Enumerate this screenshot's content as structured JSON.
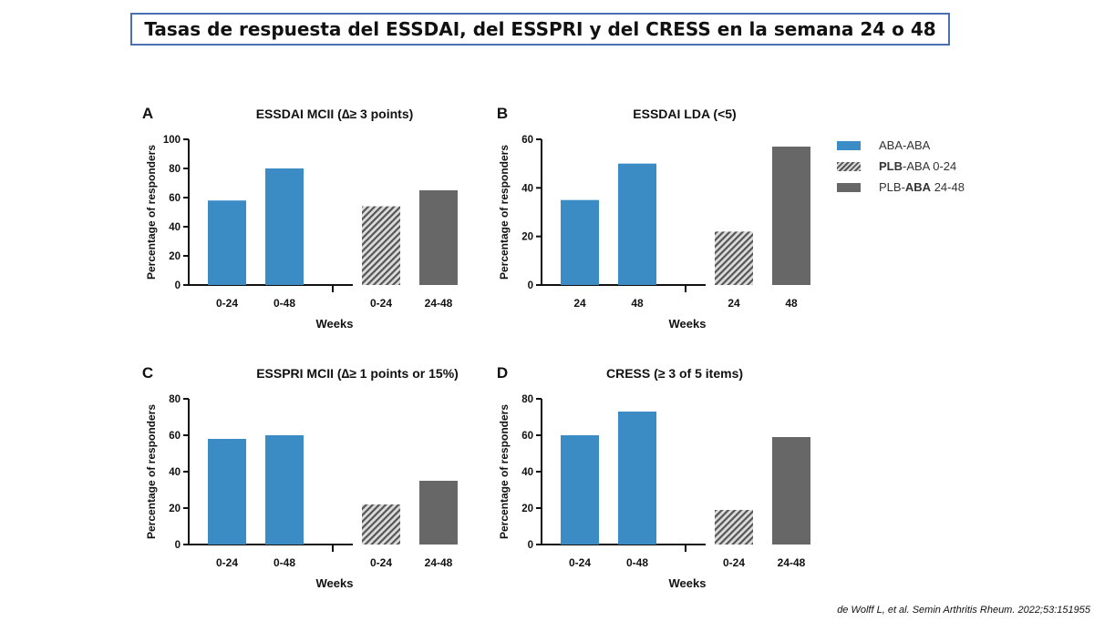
{
  "page_title": "Tasas de respuesta del ESSDAI, del ESSPRI y del CRESS en la semana 24 o 48",
  "citation": "de Wolff L, et al. Semin Arthritis Rheum. 2022;53:151955",
  "colors": {
    "aba_aba": "#3b8bc4",
    "plb_aba_24_48": "#676767",
    "hatch_dark": "#555555",
    "hatch_light": "#d8d8d8"
  },
  "legend": [
    {
      "bold": "",
      "text": "ABA-ABA",
      "style": "blue"
    },
    {
      "bold": "PLB",
      "text": "-ABA 0-24",
      "style": "hatch"
    },
    {
      "pre": "PLB-",
      "bold": "ABA",
      "text": " 24-48",
      "style": "gray"
    }
  ],
  "chart_data": [
    {
      "panel": "A",
      "type": "bar",
      "title": "ESSDAI MCII (∆≥ 3 points)",
      "xlabel": "Weeks",
      "ylabel": "Percentage of responders",
      "ylim": [
        0,
        100
      ],
      "yticks": [
        0,
        20,
        40,
        60,
        80,
        100
      ],
      "categories": [
        "0-24",
        "0-48",
        "0-24",
        "24-48"
      ],
      "values": [
        58,
        80,
        54,
        65
      ],
      "styles": [
        "blue",
        "blue",
        "hatch",
        "gray"
      ]
    },
    {
      "panel": "B",
      "type": "bar",
      "title": "ESSDAI LDA (<5)",
      "xlabel": "Weeks",
      "ylabel": "Percentage of responders",
      "ylim": [
        0,
        60
      ],
      "yticks": [
        0,
        20,
        40,
        60
      ],
      "categories": [
        "24",
        "48",
        "24",
        "48"
      ],
      "values": [
        35,
        50,
        22,
        57
      ],
      "styles": [
        "blue",
        "blue",
        "hatch",
        "gray"
      ]
    },
    {
      "panel": "C",
      "type": "bar",
      "title": "ESSPRI MCII (∆≥ 1 points or 15%)",
      "xlabel": "Weeks",
      "ylabel": "Percentage of responders",
      "ylim": [
        0,
        80
      ],
      "yticks": [
        0,
        20,
        40,
        60,
        80
      ],
      "categories": [
        "0-24",
        "0-48",
        "0-24",
        "24-48"
      ],
      "values": [
        58,
        60,
        22,
        35
      ],
      "styles": [
        "blue",
        "blue",
        "hatch",
        "gray"
      ]
    },
    {
      "panel": "D",
      "type": "bar",
      "title": "CRESS (≥ 3 of 5 items)",
      "xlabel": "Weeks",
      "ylabel": "Percentage of responders",
      "ylim": [
        0,
        80
      ],
      "yticks": [
        0,
        20,
        40,
        60,
        80
      ],
      "categories": [
        "0-24",
        "0-48",
        "0-24",
        "24-48"
      ],
      "values": [
        60,
        73,
        19,
        59
      ],
      "styles": [
        "blue",
        "blue",
        "hatch",
        "gray"
      ]
    }
  ]
}
